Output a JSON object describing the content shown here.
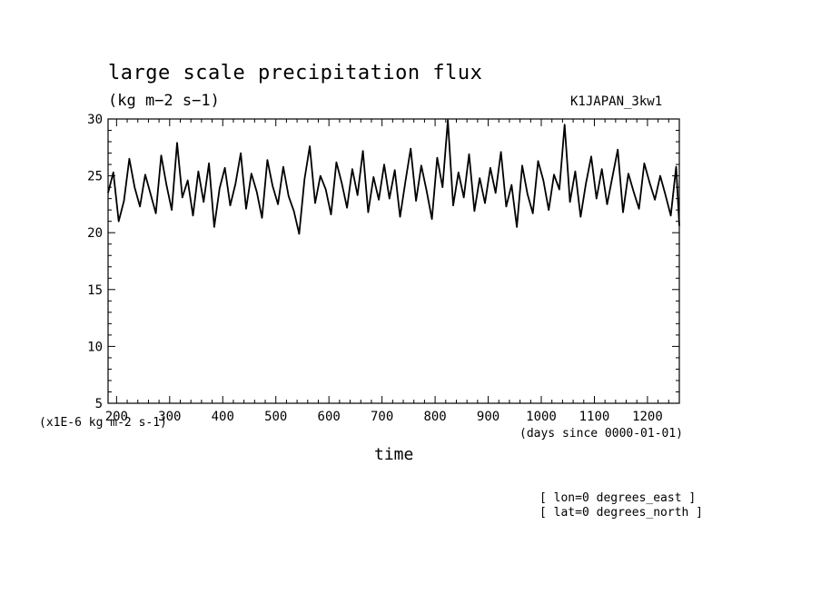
{
  "chart_data": {
    "type": "line",
    "title": "large scale precipitation flux",
    "units": "(kg m−2 s−1)",
    "dataset": "K1JAPAN_3kw1",
    "xlabel": "time",
    "xunits": "(days since 0000-01-01)",
    "ymultiplier": "(x1E-6 kg m-2 s-1)",
    "info": [
      "[ lon=0 degrees_east ]",
      "[ lat=0 degrees_north ]"
    ],
    "xlim": [
      184,
      1260
    ],
    "ylim": [
      5,
      30
    ],
    "xticks": [
      200,
      300,
      400,
      500,
      600,
      700,
      800,
      900,
      1000,
      1100,
      1200
    ],
    "yticks": [
      5,
      10,
      15,
      20,
      25,
      30
    ],
    "grid": false,
    "series": [
      {
        "color": "#000000",
        "x": [
          184,
          194,
          204,
          214,
          224,
          234,
          244,
          254,
          264,
          274,
          284,
          294,
          304,
          314,
          324,
          334,
          344,
          354,
          364,
          374,
          384,
          394,
          404,
          414,
          424,
          434,
          444,
          454,
          464,
          474,
          484,
          494,
          504,
          514,
          524,
          534,
          544,
          554,
          564,
          574,
          584,
          594,
          604,
          614,
          624,
          634,
          644,
          654,
          664,
          674,
          684,
          694,
          704,
          714,
          724,
          734,
          744,
          754,
          764,
          774,
          784,
          794,
          804,
          814,
          824,
          834,
          844,
          854,
          864,
          874,
          884,
          894,
          904,
          914,
          924,
          934,
          944,
          954,
          964,
          974,
          984,
          994,
          1004,
          1014,
          1024,
          1034,
          1044,
          1054,
          1064,
          1074,
          1084,
          1094,
          1104,
          1114,
          1124,
          1134,
          1144,
          1154,
          1164,
          1174,
          1184,
          1194,
          1204,
          1214,
          1224,
          1234,
          1244,
          1254,
          1260
        ],
        "y": [
          23.5,
          25.3,
          21.0,
          22.8,
          26.5,
          24.0,
          22.3,
          25.1,
          23.4,
          21.7,
          26.8,
          24.2,
          22.0,
          27.9,
          23.1,
          24.6,
          21.5,
          25.4,
          22.7,
          26.1,
          20.5,
          23.9,
          25.7,
          22.4,
          24.3,
          27.0,
          22.1,
          25.2,
          23.6,
          21.3,
          26.4,
          24.1,
          22.5,
          25.8,
          23.2,
          21.9,
          19.9,
          24.7,
          27.6,
          22.6,
          25.0,
          23.8,
          21.6,
          26.2,
          24.4,
          22.2,
          25.6,
          23.3,
          27.2,
          21.8,
          24.9,
          22.9,
          26.0,
          23.0,
          25.5,
          21.4,
          24.5,
          27.4,
          22.8,
          25.9,
          23.7,
          21.2,
          26.6,
          24.0,
          29.9,
          22.4,
          25.3,
          23.1,
          26.9,
          21.9,
          24.8,
          22.6,
          25.7,
          23.5,
          27.1,
          22.3,
          24.2,
          20.5,
          25.9,
          23.4,
          21.7,
          26.3,
          24.6,
          22.0,
          25.1,
          23.8,
          29.5,
          22.7,
          25.4,
          21.4,
          24.3,
          26.7,
          23.0,
          25.6,
          22.5,
          24.9,
          27.3,
          21.8,
          25.2,
          23.6,
          22.1,
          26.1,
          24.4,
          22.9,
          25.0,
          23.3,
          21.5,
          25.8,
          20.6
        ]
      }
    ]
  }
}
